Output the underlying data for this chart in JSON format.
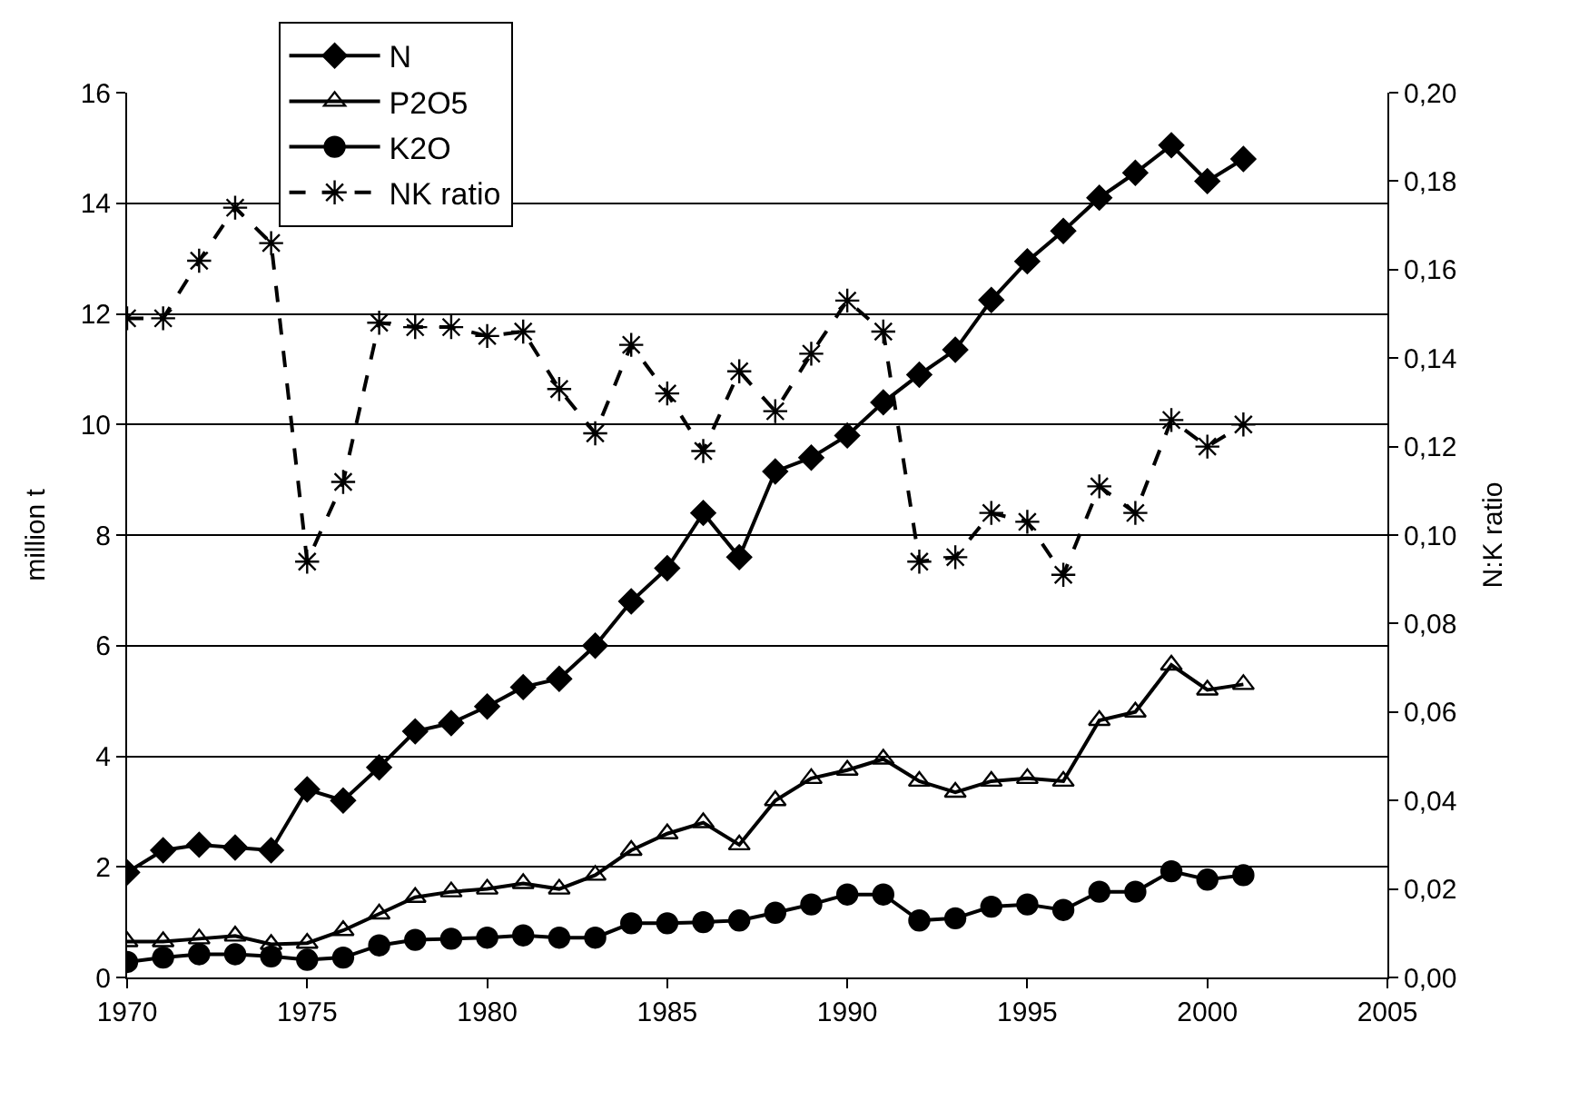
{
  "chart_data": {
    "type": "line",
    "ylabel": "million t",
    "y2label": "N:K ratio",
    "x": [
      1970,
      1971,
      1972,
      1973,
      1974,
      1975,
      1976,
      1977,
      1978,
      1979,
      1980,
      1981,
      1982,
      1983,
      1984,
      1985,
      1986,
      1987,
      1988,
      1989,
      1990,
      1991,
      1992,
      1993,
      1994,
      1995,
      1996,
      1997,
      1998,
      1999,
      2000,
      2001
    ],
    "series": [
      {
        "name": "N",
        "color": "#000000",
        "marker": "diamond",
        "line_style": "solid",
        "values": [
          1.9,
          2.3,
          2.4,
          2.35,
          2.3,
          3.4,
          3.2,
          3.8,
          4.45,
          4.6,
          4.9,
          5.25,
          5.4,
          6.0,
          6.8,
          7.4,
          8.4,
          7.6,
          9.15,
          9.4,
          9.8,
          10.4,
          10.9,
          11.35,
          12.25,
          12.95,
          13.5,
          14.1,
          14.55,
          15.05,
          14.4,
          14.8
        ]
      },
      {
        "name": "P2O5",
        "color": "#000000",
        "marker": "triangle",
        "line_style": "solid",
        "values": [
          0.65,
          0.65,
          0.7,
          0.75,
          0.6,
          0.62,
          0.85,
          1.15,
          1.45,
          1.55,
          1.6,
          1.7,
          1.6,
          1.85,
          2.3,
          2.6,
          2.8,
          2.4,
          3.2,
          3.6,
          3.75,
          3.95,
          3.55,
          3.35,
          3.55,
          3.6,
          3.55,
          4.65,
          4.8,
          5.65,
          5.2,
          5.3
        ]
      },
      {
        "name": "K2O",
        "color": "#000000",
        "marker": "circle",
        "line_style": "solid",
        "values": [
          0.28,
          0.36,
          0.42,
          0.42,
          0.38,
          0.32,
          0.36,
          0.58,
          0.68,
          0.7,
          0.72,
          0.76,
          0.72,
          0.72,
          0.98,
          0.98,
          1.0,
          1.03,
          1.17,
          1.32,
          1.5,
          1.5,
          1.03,
          1.07,
          1.28,
          1.32,
          1.22,
          1.55,
          1.55,
          1.92,
          1.77,
          1.85
        ]
      },
      {
        "name": "NK ratio",
        "color": "#000000",
        "marker": "cross",
        "line_style": "dashed",
        "axis": "y2",
        "values": [
          0.149,
          0.149,
          0.162,
          0.174,
          0.166,
          0.094,
          0.112,
          0.148,
          0.147,
          0.147,
          0.145,
          0.146,
          0.133,
          0.123,
          0.143,
          0.132,
          0.119,
          0.137,
          0.128,
          0.141,
          0.153,
          0.146,
          0.094,
          0.095,
          0.105,
          0.103,
          0.091,
          0.111,
          0.105,
          0.126,
          0.12,
          0.125
        ]
      }
    ],
    "xlim": [
      1970,
      2005
    ],
    "xticks": [
      1970,
      1975,
      1980,
      1985,
      1990,
      1995,
      2000,
      2005
    ],
    "ylim": [
      0,
      16
    ],
    "yticks": [
      0,
      2,
      4,
      6,
      8,
      10,
      12,
      14,
      16
    ],
    "y2lim": [
      0,
      0.2
    ],
    "y2ticks": [
      {
        "value": 0,
        "label": "0,00"
      },
      {
        "value": 0.02,
        "label": "0,02"
      },
      {
        "value": 0.04,
        "label": "0,04"
      },
      {
        "value": 0.06,
        "label": "0,06"
      },
      {
        "value": 0.08,
        "label": "0,08"
      },
      {
        "value": 0.1,
        "label": "0,10"
      },
      {
        "value": 0.12,
        "label": "0,12"
      },
      {
        "value": 0.14,
        "label": "0,14"
      },
      {
        "value": 0.16,
        "label": "0,16"
      },
      {
        "value": 0.18,
        "label": "0,18"
      },
      {
        "value": 0.2,
        "label": "0,20"
      }
    ],
    "grid": "y",
    "legend": "top left"
  }
}
